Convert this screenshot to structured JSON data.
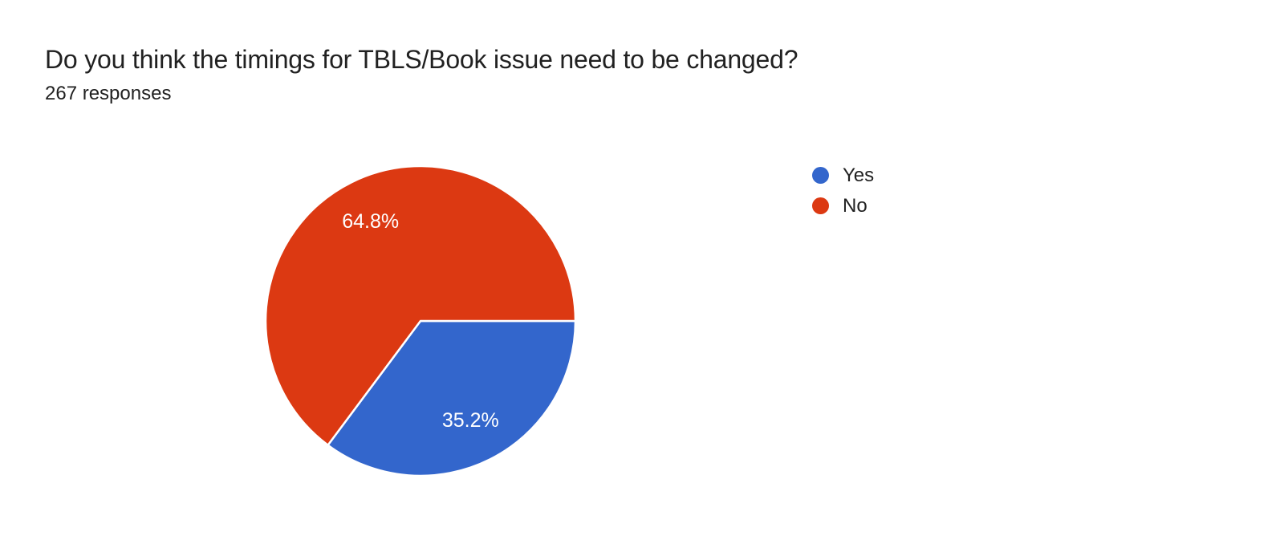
{
  "page": {
    "background": "#ffffff"
  },
  "chart_data": {
    "type": "pie",
    "title": "Do you think the timings for TBLS/Book issue need to be changed?",
    "subtitle": "267 responses",
    "response_count": 267,
    "slices": [
      {
        "label": "Yes",
        "value": 35.2,
        "display": "35.2%",
        "color": "#3366cc"
      },
      {
        "label": "No",
        "value": 64.8,
        "display": "64.8%",
        "color": "#dc3912"
      }
    ],
    "start_angle_deg": 0,
    "direction": "clockwise",
    "legend_position": "right",
    "slice_label_color": "#ffffff",
    "slice_border_color": "#ffffff",
    "grid": false
  }
}
